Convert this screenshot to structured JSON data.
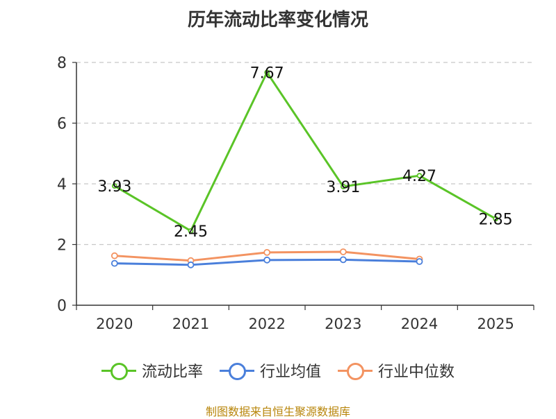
{
  "chart_data": {
    "type": "line",
    "title": "历年流动比率变化情况",
    "categories": [
      "2020",
      "2021",
      "2022",
      "2023",
      "2024",
      "2025"
    ],
    "ylim": [
      0,
      8
    ],
    "yticks": [
      0,
      2,
      4,
      6,
      8
    ],
    "grid": true,
    "series": [
      {
        "name": "流动比率",
        "color": "#5ac427",
        "values": [
          3.93,
          2.45,
          7.67,
          3.91,
          4.27,
          2.85
        ],
        "labels": [
          "3.93",
          "2.45",
          "7.67",
          "3.91",
          "4.27",
          "2.85"
        ]
      },
      {
        "name": "行业均值",
        "color": "#4a7fdb",
        "values": [
          1.38,
          1.33,
          1.49,
          1.5,
          1.44,
          null
        ]
      },
      {
        "name": "行业中位数",
        "color": "#f39361",
        "values": [
          1.63,
          1.47,
          1.74,
          1.76,
          1.52,
          null
        ]
      }
    ],
    "legend_position": "bottom"
  },
  "source": "制图数据来自恒生聚源数据库"
}
